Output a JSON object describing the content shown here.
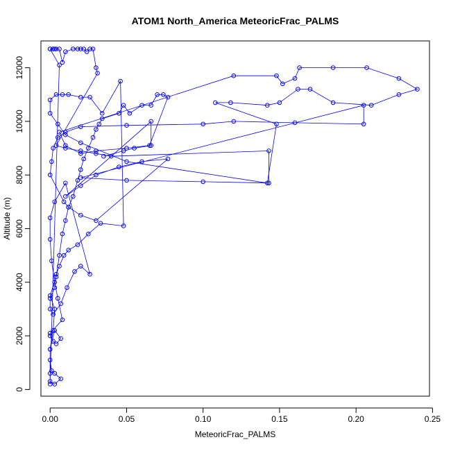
{
  "chart_data": {
    "type": "scatter",
    "title": "ATOM1 North_America MeteoricFrac_PALMS",
    "xlabel": "MeteoricFrac_PALMS",
    "ylabel": "Altitude (m)",
    "xlim": [
      -0.006,
      0.248
    ],
    "ylim": [
      -250,
      13000
    ],
    "x_ticks": [
      0.0,
      0.05,
      0.1,
      0.15,
      0.2,
      0.25
    ],
    "x_tick_labels": [
      "0.00",
      "0.05",
      "0.10",
      "0.15",
      "0.20",
      "0.25"
    ],
    "y_ticks": [
      0,
      2000,
      4000,
      6000,
      8000,
      10000,
      12000
    ],
    "y_tick_labels": [
      "0",
      "2000",
      "4000",
      "6000",
      "8000",
      "10000",
      "12000"
    ],
    "marker": "open-circle",
    "connected": true,
    "grid": false,
    "series": [
      {
        "color": "#0000ff",
        "x": [
          0.0,
          0.0,
          0.0,
          0.002,
          0.003,
          0.0,
          0.004,
          0.006,
          0.008,
          0.01,
          0.012,
          0.015,
          0.018,
          0.02,
          0.022,
          0.025,
          0.028,
          0.03,
          0.032,
          0.034,
          0.045,
          0.048,
          0.052,
          0.06,
          0.066,
          0.07,
          0.074,
          0.077,
          0.065,
          0.05,
          0.03,
          0.02,
          0.01,
          0.006,
          0.12,
          0.148,
          0.152,
          0.16,
          0.163,
          0.185,
          0.207,
          0.228,
          0.24,
          0.228,
          0.21,
          0.185,
          0.17,
          0.162,
          0.15,
          0.142,
          0.118,
          0.108,
          0.148,
          0.142,
          0.05,
          0.02,
          0.01,
          0.005,
          0.0,
          0.0,
          0.004,
          0.008,
          0.012,
          0.02,
          0.026,
          0.034,
          0.046,
          0.048,
          0.033,
          0.025,
          0.018,
          0.012,
          0.009,
          0.006,
          0.004,
          0.003,
          0.0,
          0.0,
          0.002,
          0.007,
          0.011,
          0.016,
          0.02,
          0.026,
          0.01,
          0.003,
          0.0,
          0.0,
          0.001,
          0.003,
          0.005,
          0.008,
          0.0,
          0.0,
          0.002,
          0.004,
          0.007,
          0.003,
          0.0,
          0.0,
          0.001,
          0.003,
          0.007,
          0.003,
          0.0,
          0.006,
          0.0,
          0.003
        ],
        "y": [
          200,
          600,
          1500,
          2200,
          3000,
          3500,
          4200,
          5000,
          5800,
          6300,
          6800,
          7200,
          7800,
          8200,
          8600,
          9000,
          9400,
          9700,
          9900,
          10100,
          10300,
          10600,
          10300,
          10600,
          10600,
          11000,
          11000,
          10900,
          9100,
          9000,
          8900,
          8800,
          9100,
          9600,
          11700,
          11700,
          11400,
          11600,
          12000,
          12000,
          12000,
          11600,
          11200,
          11000,
          10600,
          10700,
          11200,
          11200,
          10700,
          10600,
          10700,
          10700,
          9900,
          7700,
          8500,
          9200,
          9500,
          9900,
          10300,
          10800,
          11000,
          11000,
          11000,
          10900,
          10900,
          10300,
          11500,
          6100,
          6200,
          5800,
          5400,
          5200,
          5000,
          4600,
          4300,
          3800,
          3400,
          3000,
          2800,
          3200,
          3800,
          4400,
          4600,
          4300,
          7700,
          7000,
          6400,
          5600,
          4800,
          4000,
          3400,
          2600,
          2100,
          2000,
          1800,
          1700,
          1900,
          2200,
          1500,
          1100,
          700,
          600,
          400,
          200,
          300,
          12100,
          12700,
          12700
        ]
      },
      {
        "color": "#0000ff",
        "x": [
          0.0,
          0.002,
          0.004,
          0.006,
          0.008,
          0.01,
          0.015,
          0.018,
          0.02,
          0.022,
          0.024,
          0.026,
          0.028,
          0.03,
          0.031,
          0.004,
          0.01,
          0.02,
          0.03,
          0.04,
          0.143,
          0.143,
          0.1,
          0.05,
          0.02,
          0.205,
          0.205,
          0.16,
          0.12,
          0.1,
          0.05,
          0.02,
          0.01,
          0.005,
          0.002,
          0.001,
          0.0,
          0.009,
          0.012,
          0.02,
          0.03,
          0.077,
          0.06,
          0.045,
          0.03,
          0.02,
          0.01,
          0.066,
          0.066,
          0.055,
          0.048,
          0.035
        ],
        "y": [
          12700,
          12700,
          12700,
          12700,
          12200,
          12600,
          12700,
          12700,
          12700,
          12700,
          12600,
          12700,
          12700,
          12000,
          11800,
          9100,
          9000,
          8900,
          8800,
          8700,
          8900,
          7700,
          7750,
          7800,
          7900,
          10600,
          9900,
          9950,
          10000,
          9900,
          9850,
          9800,
          9600,
          9400,
          9000,
          8500,
          8000,
          7000,
          6800,
          6500,
          6300,
          8600,
          8500,
          8300,
          8000,
          7600,
          7200,
          10000,
          9100,
          9000,
          8900,
          8700
        ]
      }
    ]
  }
}
